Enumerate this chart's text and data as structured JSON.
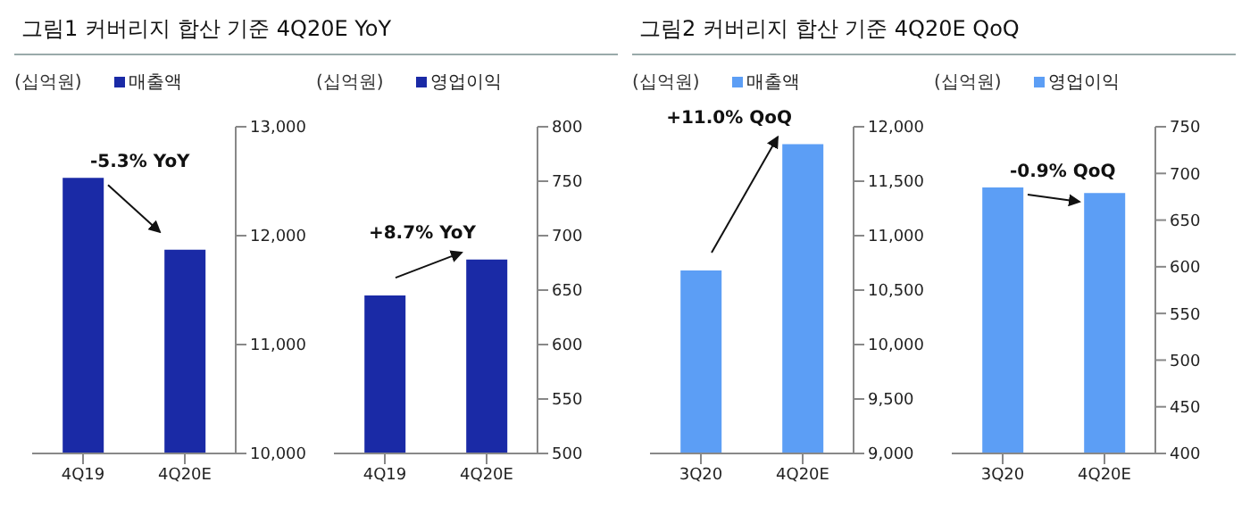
{
  "chart_data": [
    {
      "type": "bar",
      "title": "그림1 커버리지 합산 기준 4Q20E YoY",
      "ylabel": "(십억원)",
      "categories": [
        "4Q19",
        "4Q20E"
      ],
      "series": [
        {
          "name": "매출액",
          "color": "#1a2aa6",
          "values": [
            12530,
            11870
          ]
        }
      ],
      "ylim": [
        10000,
        13000
      ],
      "yticks": [
        {
          "value": 10000,
          "label": "10,000"
        },
        {
          "value": 11000,
          "label": "11,000"
        },
        {
          "value": 12000,
          "label": "12,000"
        },
        {
          "value": 13000,
          "label": "13,000"
        }
      ],
      "grid": false,
      "legend": "top",
      "annotations": [
        "-5.3% YoY"
      ]
    },
    {
      "type": "bar",
      "ylabel": "(십억원)",
      "categories": [
        "4Q19",
        "4Q20E"
      ],
      "series": [
        {
          "name": "영업이익",
          "color": "#1a2aa6",
          "values": [
            645,
            678
          ]
        }
      ],
      "ylim": [
        500,
        800
      ],
      "yticks": [
        500,
        550,
        600,
        650,
        700,
        750,
        800
      ],
      "grid": false,
      "legend": "top",
      "annotations": [
        "+8.7% YoY"
      ]
    },
    {
      "type": "bar",
      "title": "그림2 커버리지 합산 기준 4Q20E QoQ",
      "ylabel": "(십억원)",
      "categories": [
        "3Q20",
        "4Q20E"
      ],
      "series": [
        {
          "name": "매출액",
          "color": "#5c9ef5",
          "values": [
            10680,
            11840
          ]
        }
      ],
      "ylim": [
        9000,
        12000
      ],
      "yticks": [
        {
          "value": 9000,
          "label": "9,000"
        },
        {
          "value": 9500,
          "label": "9,500"
        },
        {
          "value": 10000,
          "label": "10,000"
        },
        {
          "value": 10500,
          "label": "10,500"
        },
        {
          "value": 11000,
          "label": "11,000"
        },
        {
          "value": 11500,
          "label": "11,500"
        },
        {
          "value": 12000,
          "label": "12,000"
        }
      ],
      "grid": false,
      "legend": "top",
      "annotations": [
        "+11.0% QoQ"
      ]
    },
    {
      "type": "bar",
      "ylabel": "(십억원)",
      "categories": [
        "3Q20",
        "4Q20E"
      ],
      "series": [
        {
          "name": "영업이익",
          "color": "#5c9ef5",
          "values": [
            685,
            679
          ]
        }
      ],
      "ylim": [
        400,
        750
      ],
      "yticks": [
        400,
        450,
        500,
        550,
        600,
        650,
        700,
        750
      ],
      "grid": false,
      "legend": "top",
      "annotations": [
        "-0.9% QoQ"
      ]
    }
  ]
}
